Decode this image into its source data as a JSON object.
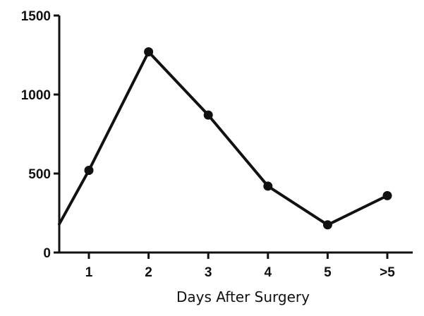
{
  "chart_data": {
    "type": "line",
    "title": "",
    "xlabel": "Days After Surgery",
    "ylabel": "",
    "categories": [
      "1",
      "2",
      "3",
      "4",
      "5",
      ">5"
    ],
    "y_ticks": [
      "0",
      "500",
      "1000",
      "1500"
    ],
    "ylim": [
      0,
      1500
    ],
    "grid": false,
    "legend": "none",
    "line_color": "#111111",
    "series": [
      {
        "start_value": 180,
        "values": [
          520,
          1270,
          870,
          420,
          175,
          360
        ]
      }
    ]
  }
}
